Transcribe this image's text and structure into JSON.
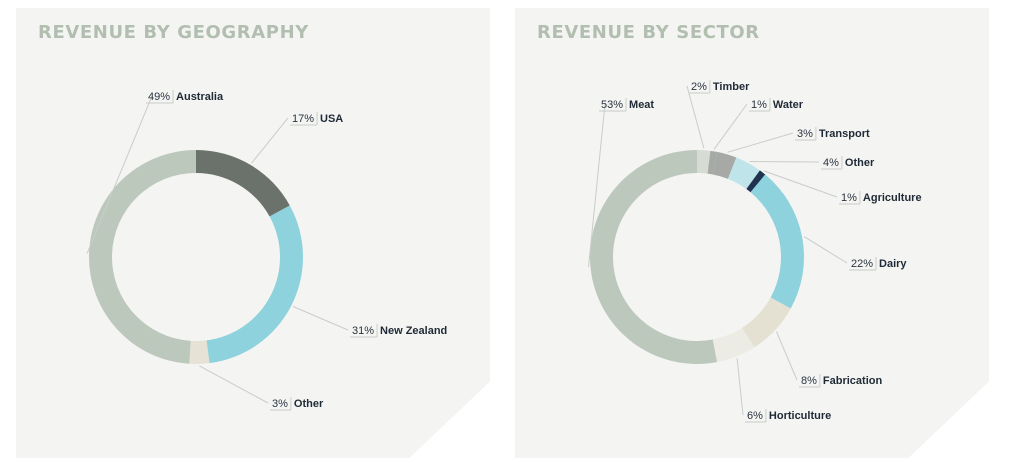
{
  "chart_data": [
    {
      "type": "pie",
      "title": "REVENUE BY GEOGRAPHY",
      "donut": true,
      "slices": [
        {
          "label": "USA",
          "value": 17,
          "display": "17%",
          "color": "#6b716b"
        },
        {
          "label": "New Zealand",
          "value": 31,
          "display": "31%",
          "color": "#8dd2dc"
        },
        {
          "label": "Other",
          "value": 3,
          "display": "3%",
          "color": "#e6e2d6"
        },
        {
          "label": "Australia",
          "value": 49,
          "display": "49%",
          "color": "#bdc8bd"
        }
      ]
    },
    {
      "type": "pie",
      "title": "REVENUE BY SECTOR",
      "donut": true,
      "slices": [
        {
          "label": "Timber",
          "value": 2,
          "display": "2%",
          "color": "#d6dbd4"
        },
        {
          "label": "Water",
          "value": 1,
          "display": "1%",
          "color": "#a6a9a6"
        },
        {
          "label": "Transport",
          "value": 3,
          "display": "3%",
          "color": "#a6a9a6"
        },
        {
          "label": "Other",
          "value": 4,
          "display": "4%",
          "color": "#bfe4ea"
        },
        {
          "label": "Agriculture",
          "value": 1,
          "display": "1%",
          "color": "#1f3350"
        },
        {
          "label": "Dairy",
          "value": 22,
          "display": "22%",
          "color": "#8dd2dc"
        },
        {
          "label": "Fabrication",
          "value": 8,
          "display": "8%",
          "color": "#e4e0d2"
        },
        {
          "label": "Horticulture",
          "value": 6,
          "display": "6%",
          "color": "#ecebe4"
        },
        {
          "label": "Meat",
          "value": 53,
          "display": "53%",
          "color": "#bdc8bd"
        }
      ]
    }
  ]
}
